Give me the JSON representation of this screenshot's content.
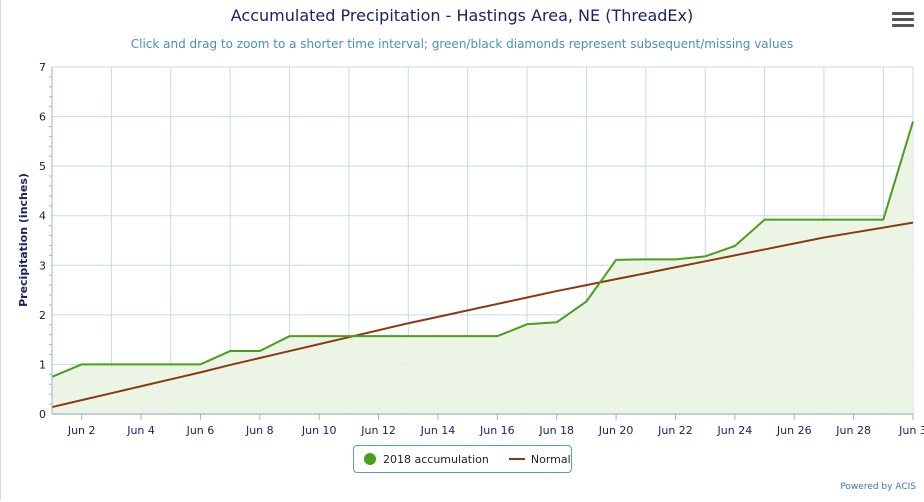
{
  "chart_data": {
    "type": "line",
    "title": "Accumulated Precipitation - Hastings Area, NE (ThreadEx)",
    "subtitle": "Click and drag to zoom to a shorter time interval; green/black diamonds represent subsequent/missing values",
    "ylabel": "Precipitation (inches)",
    "xlabel": "",
    "ylim": [
      0,
      7
    ],
    "xlim": [
      1,
      30
    ],
    "yticks": [
      "0",
      "1",
      "2",
      "3",
      "4",
      "5",
      "6",
      "7"
    ],
    "xticks": [
      {
        "x": 2,
        "label": "Jun 2"
      },
      {
        "x": 4,
        "label": "Jun 4"
      },
      {
        "x": 6,
        "label": "Jun 6"
      },
      {
        "x": 8,
        "label": "Jun 8"
      },
      {
        "x": 10,
        "label": "Jun 10"
      },
      {
        "x": 12,
        "label": "Jun 12"
      },
      {
        "x": 14,
        "label": "Jun 14"
      },
      {
        "x": 16,
        "label": "Jun 16"
      },
      {
        "x": 18,
        "label": "Jun 18"
      },
      {
        "x": 20,
        "label": "Jun 20"
      },
      {
        "x": 22,
        "label": "Jun 22"
      },
      {
        "x": 24,
        "label": "Jun 24"
      },
      {
        "x": 26,
        "label": "Jun 26"
      },
      {
        "x": 28,
        "label": "Jun 28"
      },
      {
        "x": 30,
        "label": "Jun 3"
      }
    ],
    "grid": true,
    "legend_position": "bottom-center",
    "series": [
      {
        "name": "2018 accumulation",
        "color": "#4a9e1e",
        "fill": "#eaf4e2",
        "x": [
          1,
          2,
          3,
          4,
          5,
          6,
          7,
          8,
          9,
          10,
          11,
          12,
          13,
          14,
          15,
          16,
          17,
          18,
          19,
          20,
          21,
          22,
          23,
          24,
          25,
          26,
          27,
          28,
          29,
          30
        ],
        "values": [
          0.75,
          1.0,
          1.0,
          1.0,
          1.0,
          1.0,
          1.27,
          1.27,
          1.57,
          1.57,
          1.57,
          1.57,
          1.57,
          1.57,
          1.57,
          1.57,
          1.81,
          1.85,
          2.27,
          3.11,
          3.12,
          3.12,
          3.18,
          3.39,
          3.92,
          3.92,
          3.92,
          3.92,
          3.92,
          5.9
        ]
      },
      {
        "name": "Normal",
        "color": "#8b3a10",
        "x": [
          1,
          2,
          3,
          4,
          5,
          6,
          7,
          8,
          9,
          10,
          11,
          12,
          13,
          14,
          15,
          16,
          17,
          18,
          19,
          20,
          21,
          22,
          23,
          24,
          25,
          26,
          27,
          28,
          29,
          30
        ],
        "values": [
          0.14,
          0.28,
          0.42,
          0.56,
          0.7,
          0.84,
          0.99,
          1.13,
          1.27,
          1.41,
          1.55,
          1.69,
          1.83,
          1.96,
          2.09,
          2.22,
          2.35,
          2.48,
          2.6,
          2.72,
          2.84,
          2.96,
          3.08,
          3.2,
          3.32,
          3.44,
          3.56,
          3.66,
          3.76,
          3.86
        ]
      }
    ]
  },
  "legend": {
    "item1_label": "2018 accumulation",
    "item2_label": "Normal"
  },
  "credit": "Powered by ACIS"
}
